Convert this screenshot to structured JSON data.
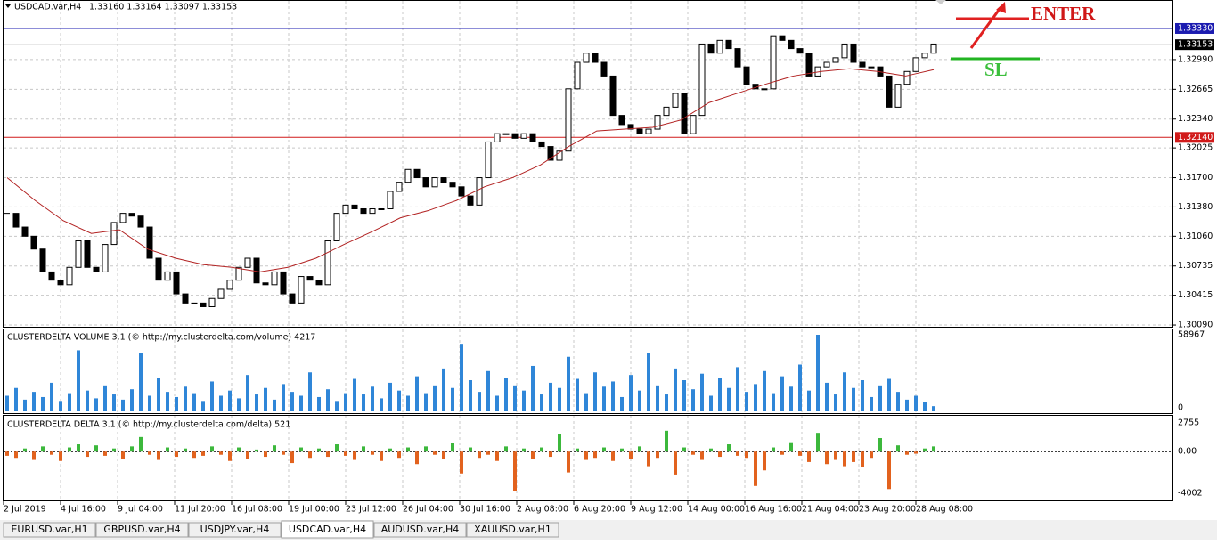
{
  "header": {
    "symbol": "USDCAD.var,H4",
    "quote": "1.33160 1.33164 1.33097 1.33153"
  },
  "price": {
    "ylim": [
      1.30071,
      1.33641
    ],
    "yticks": [
      {
        "value": 1.3299,
        "label": "1.32990"
      },
      {
        "value": 1.32665,
        "label": "1.32665"
      },
      {
        "value": 1.3234,
        "label": "1.32340"
      },
      {
        "value": 1.32025,
        "label": "1.32025"
      },
      {
        "value": 1.317,
        "label": "1.31700"
      },
      {
        "value": 1.3138,
        "label": "1.31380"
      },
      {
        "value": 1.3106,
        "label": "1.31060"
      },
      {
        "value": 1.30735,
        "label": "1.30735"
      },
      {
        "value": 1.30415,
        "label": "1.30415"
      },
      {
        "value": 1.3009,
        "label": "1.30090"
      }
    ],
    "levels": [
      {
        "value": 1.3333,
        "label": "1.33330",
        "color": "#1b1bb0"
      },
      {
        "value": 1.3214,
        "label": "1.32140",
        "color": "#d11a1a"
      },
      {
        "value": 1.33153,
        "label": "1.33153",
        "color": "#000000"
      }
    ],
    "closes": [
      1.3131,
      1.3116,
      1.3106,
      1.3092,
      1.3067,
      1.3058,
      1.3053,
      1.3072,
      1.3101,
      1.3072,
      1.3067,
      1.3097,
      1.3121,
      1.3131,
      1.3128,
      1.3116,
      1.3082,
      1.3058,
      1.3067,
      1.3043,
      1.3033,
      1.3033,
      1.3029,
      1.3038,
      1.3048,
      1.3058,
      1.3072,
      1.3082,
      1.3055,
      1.3053,
      1.3067,
      1.3043,
      1.3033,
      1.3062,
      1.3058,
      1.3053,
      1.3101,
      1.3131,
      1.314,
      1.3136,
      1.3131,
      1.3136,
      1.3136,
      1.3155,
      1.3165,
      1.3179,
      1.317,
      1.316,
      1.317,
      1.3165,
      1.316,
      1.315,
      1.314,
      1.317,
      1.3209,
      1.3218,
      1.3218,
      1.3213,
      1.3218,
      1.3209,
      1.3204,
      1.3189,
      1.3199,
      1.3267,
      1.3296,
      1.3306,
      1.3296,
      1.3281,
      1.3238,
      1.3228,
      1.3223,
      1.3218,
      1.3223,
      1.3238,
      1.3247,
      1.3262,
      1.3218,
      1.3238,
      1.3316,
      1.3306,
      1.332,
      1.3311,
      1.3291,
      1.3272,
      1.3267,
      1.3267,
      1.3325,
      1.332,
      1.3311,
      1.3306,
      1.3281,
      1.3291,
      1.3296,
      1.3301,
      1.3316,
      1.3296,
      1.3291,
      1.3291,
      1.3281,
      1.3247,
      1.3272,
      1.3286,
      1.3301,
      1.3306,
      1.3316
    ],
    "ma": [
      1.317,
      1.3145,
      1.3123,
      1.3109,
      1.3113,
      1.3092,
      1.3082,
      1.3075,
      1.3072,
      1.3067,
      1.3072,
      1.3082,
      1.3097,
      1.3111,
      1.3126,
      1.3134,
      1.3145,
      1.316,
      1.317,
      1.3184,
      1.3204,
      1.3221,
      1.3223,
      1.3225,
      1.3233,
      1.3252,
      1.3262,
      1.3272,
      1.3281,
      1.3286,
      1.3289,
      1.3286,
      1.3281,
      1.3288
    ]
  },
  "volume": {
    "title": "CLUSTERDELTA VOLUME 3.1 (© http://my.clusterdelta.com/volume) 4217",
    "ylim": [
      0,
      58967
    ],
    "yticks": [
      58967,
      0
    ],
    "color": "#2f86d8",
    "values": [
      12000,
      18000,
      9000,
      15000,
      11000,
      22000,
      8000,
      14000,
      47000,
      16000,
      10000,
      20000,
      13000,
      9000,
      17000,
      45000,
      12000,
      26000,
      15000,
      11000,
      19000,
      14000,
      8000,
      23000,
      12000,
      16000,
      10000,
      28000,
      13000,
      18000,
      9000,
      21000,
      15000,
      12000,
      30000,
      11000,
      17000,
      8000,
      14000,
      25000,
      13000,
      19000,
      10000,
      22000,
      16000,
      12000,
      27000,
      14000,
      20000,
      33000,
      18000,
      52000,
      24000,
      15000,
      31000,
      12000,
      26000,
      20000,
      16000,
      35000,
      13000,
      22000,
      18000,
      42000,
      25000,
      14000,
      30000,
      19000,
      23000,
      11000,
      28000,
      16000,
      45000,
      20000,
      13000,
      33000,
      24000,
      17000,
      29000,
      12000,
      26000,
      18000,
      34000,
      15000,
      21000,
      31000,
      14000,
      27000,
      19000,
      36000,
      16000,
      58967,
      22000,
      13000,
      30000,
      18000,
      24000,
      11000,
      20000,
      25000,
      15000,
      9000,
      12000,
      7000,
      4000
    ]
  },
  "delta": {
    "title": "CLUSTERDELTA DELTA 3.1 (© http://my.clusterdelta.com/delta) 521",
    "ylim": [
      -4002,
      2755
    ],
    "yticks": [
      2755,
      {
        "value": 0,
        "label": "0.00"
      },
      -4002
    ],
    "up_color": "#3cb83c",
    "down_color": "#e2621e",
    "values": [
      -400,
      -600,
      300,
      -800,
      500,
      -300,
      -900,
      400,
      700,
      -500,
      600,
      -400,
      300,
      -700,
      500,
      1400,
      -300,
      -800,
      400,
      -500,
      300,
      -600,
      -400,
      500,
      -300,
      -900,
      400,
      -700,
      200,
      -500,
      600,
      -300,
      -1100,
      400,
      -600,
      300,
      -500,
      700,
      -400,
      -800,
      500,
      -300,
      -900,
      300,
      -600,
      400,
      -1200,
      500,
      -300,
      -700,
      800,
      -2100,
      400,
      -600,
      -300,
      -900,
      500,
      -3800,
      300,
      -700,
      400,
      -500,
      1700,
      -2000,
      300,
      -800,
      -600,
      400,
      -900,
      300,
      -700,
      500,
      -1400,
      -600,
      2000,
      -2200,
      400,
      -300,
      -800,
      300,
      -500,
      700,
      -400,
      -600,
      -3300,
      -1800,
      400,
      -300,
      900,
      -400,
      -1000,
      1800,
      -1200,
      -800,
      -1400,
      -1000,
      -1500,
      -600,
      1300,
      -3600,
      600,
      -300,
      -200,
      300,
      500
    ]
  },
  "time_labels": [
    "2 Jul 2019",
    "4 Jul 16:00",
    "9 Jul 04:00",
    "11 Jul 20:00",
    "16 Jul 08:00",
    "19 Jul 00:00",
    "23 Jul 12:00",
    "26 Jul 04:00",
    "30 Jul 16:00",
    "2 Aug 08:00",
    "6 Aug 20:00",
    "9 Aug 12:00",
    "14 Aug 00:00",
    "16 Aug 16:00",
    "21 Aug 04:00",
    "23 Aug 20:00",
    "28 Aug 08:00"
  ],
  "annotations": {
    "enter": "ENTER",
    "sl": "SL"
  },
  "tabs": [
    "EURUSD.var,H1",
    "GBPUSD.var,H4",
    "USDJPY.var,H4",
    "USDCAD.var,H4",
    "AUDUSD.var,H4",
    "XAUUSD.var,H1"
  ],
  "active_tab": 3
}
